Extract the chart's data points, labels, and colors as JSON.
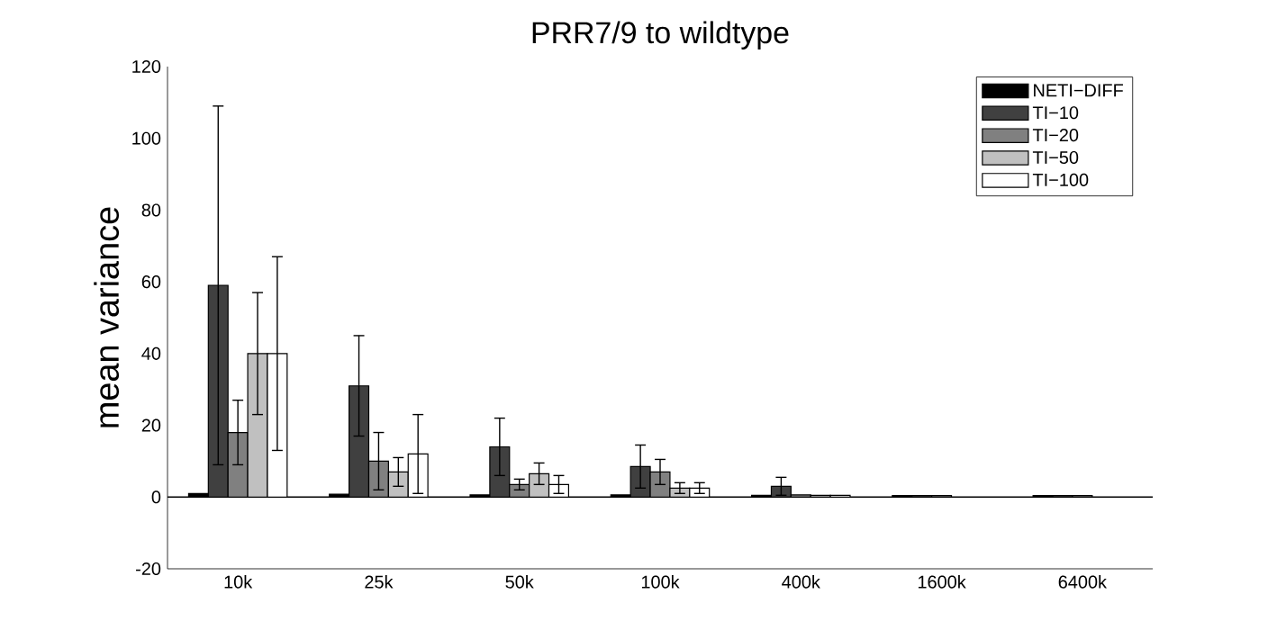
{
  "chart_data": {
    "type": "bar",
    "title": "PRR7/9 to wildtype",
    "ylabel": "mean variance",
    "categories": [
      "10k",
      "25k",
      "50k",
      "100k",
      "400k",
      "1600k",
      "6400k"
    ],
    "series": [
      {
        "name": "NETI−DIFF",
        "color": "#000000",
        "values": [
          1,
          0.8,
          0.6,
          0.6,
          0.5,
          0.4,
          0.4
        ]
      },
      {
        "name": "TI−10",
        "color": "#404040",
        "values": [
          59,
          31,
          14,
          8.5,
          3,
          0.4,
          0.4
        ],
        "errors": [
          50,
          14,
          8,
          6,
          2.5,
          null,
          null
        ]
      },
      {
        "name": "TI−20",
        "color": "#808080",
        "values": [
          18,
          10,
          3.5,
          7,
          0.6,
          0.4,
          0.4
        ],
        "errors": [
          9,
          8,
          1.5,
          3.5,
          null,
          null,
          null
        ]
      },
      {
        "name": "TI−50",
        "color": "#c0c0c0",
        "values": [
          40,
          7,
          6.5,
          2.5,
          0.5,
          null,
          null
        ],
        "errors": [
          17,
          4,
          3,
          1.5,
          null,
          null,
          null
        ]
      },
      {
        "name": "TI−100",
        "color": "#ffffff",
        "values": [
          40,
          12,
          3.5,
          2.5,
          0.5,
          null,
          null
        ],
        "errors": [
          27,
          11,
          2.5,
          1.5,
          null,
          null,
          null
        ]
      }
    ],
    "ylim": [
      -20,
      120
    ],
    "yticks": [
      -20,
      0,
      20,
      40,
      60,
      80,
      100,
      120
    ],
    "ref_lines": [
      {
        "axis": "y",
        "value": 0
      }
    ],
    "legend": "top right",
    "grid": false
  }
}
